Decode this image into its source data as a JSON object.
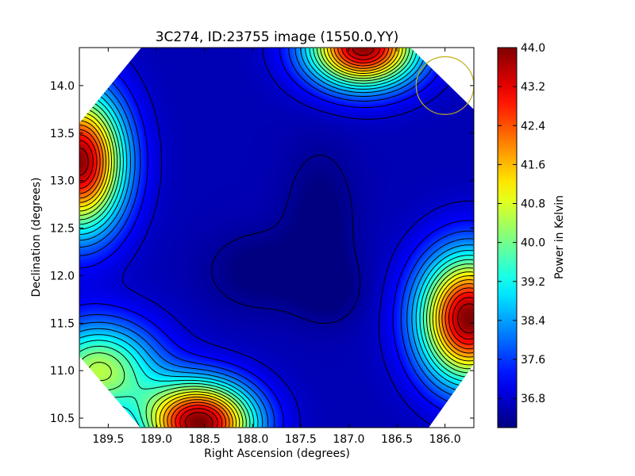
{
  "chart_data": {
    "type": "heatmap",
    "title": "3C274, ID:23755 image (1550.0,YY)",
    "xlabel": "Right Ascension (degrees)",
    "ylabel": "Declination (degrees)",
    "colorbar_label": "Power in Kelvin",
    "colormap": "jet",
    "x_axis_inverted": true,
    "xlim": [
      189.8,
      185.7
    ],
    "ylim": [
      10.4,
      14.4
    ],
    "x_ticks": [
      189.5,
      189.0,
      188.5,
      188.0,
      187.5,
      187.0,
      186.5,
      186.0
    ],
    "x_tick_labels": [
      "189.5",
      "189.0",
      "188.5",
      "188.0",
      "187.5",
      "187.0",
      "186.5",
      "186.0"
    ],
    "y_ticks": [
      10.5,
      11.0,
      11.5,
      12.0,
      12.5,
      13.0,
      13.5,
      14.0
    ],
    "y_tick_labels": [
      "10.5",
      "11.0",
      "11.5",
      "12.0",
      "12.5",
      "13.0",
      "13.5",
      "14.0"
    ],
    "colorbar_range": [
      36.2,
      44.0
    ],
    "colorbar_ticks": [
      36.8,
      37.6,
      38.4,
      39.2,
      40.0,
      40.8,
      41.6,
      42.4,
      43.2,
      44.0
    ],
    "colorbar_tick_labels": [
      "36.8",
      "37.6",
      "38.4",
      "39.2",
      "40.0",
      "40.8",
      "41.6",
      "42.4",
      "43.2",
      "44.0"
    ],
    "footprint": "octagon",
    "contours": true,
    "circle_marker": {
      "ra": 186.0,
      "dec": 14.0,
      "radius_deg": 0.3,
      "color": "#c0b020"
    },
    "background_level": 36.6,
    "peaks": [
      {
        "ra": 188.55,
        "dec": 10.45,
        "value": 44.0,
        "sra": 0.55,
        "sdec": 0.42
      },
      {
        "ra": 189.6,
        "dec": 11.0,
        "value": 40.5,
        "sra": 0.6,
        "sdec": 0.5
      },
      {
        "ra": 189.8,
        "dec": 13.2,
        "value": 43.9,
        "sra": 0.45,
        "sdec": 0.7
      },
      {
        "ra": 186.85,
        "dec": 14.4,
        "value": 43.9,
        "sra": 0.55,
        "sdec": 0.4
      },
      {
        "ra": 185.75,
        "dec": 11.55,
        "value": 44.0,
        "sra": 0.5,
        "sdec": 0.65
      }
    ],
    "dips": [
      {
        "ra": 187.9,
        "dec": 12.05,
        "value": 0.5,
        "sra": 0.55,
        "sdec": 0.4
      },
      {
        "ra": 187.3,
        "dec": 12.6,
        "value": 0.5,
        "sra": 0.35,
        "sdec": 0.7
      },
      {
        "ra": 187.2,
        "dec": 11.85,
        "value": 0.4,
        "sra": 0.35,
        "sdec": 0.35
      }
    ],
    "contour_levels": [
      36.4,
      36.8,
      37.2,
      37.6,
      38.0,
      38.4,
      38.8,
      39.2,
      39.6,
      40.0,
      40.4,
      40.8,
      41.2,
      41.6,
      42.0,
      42.4,
      42.8,
      43.2,
      43.6
    ]
  }
}
